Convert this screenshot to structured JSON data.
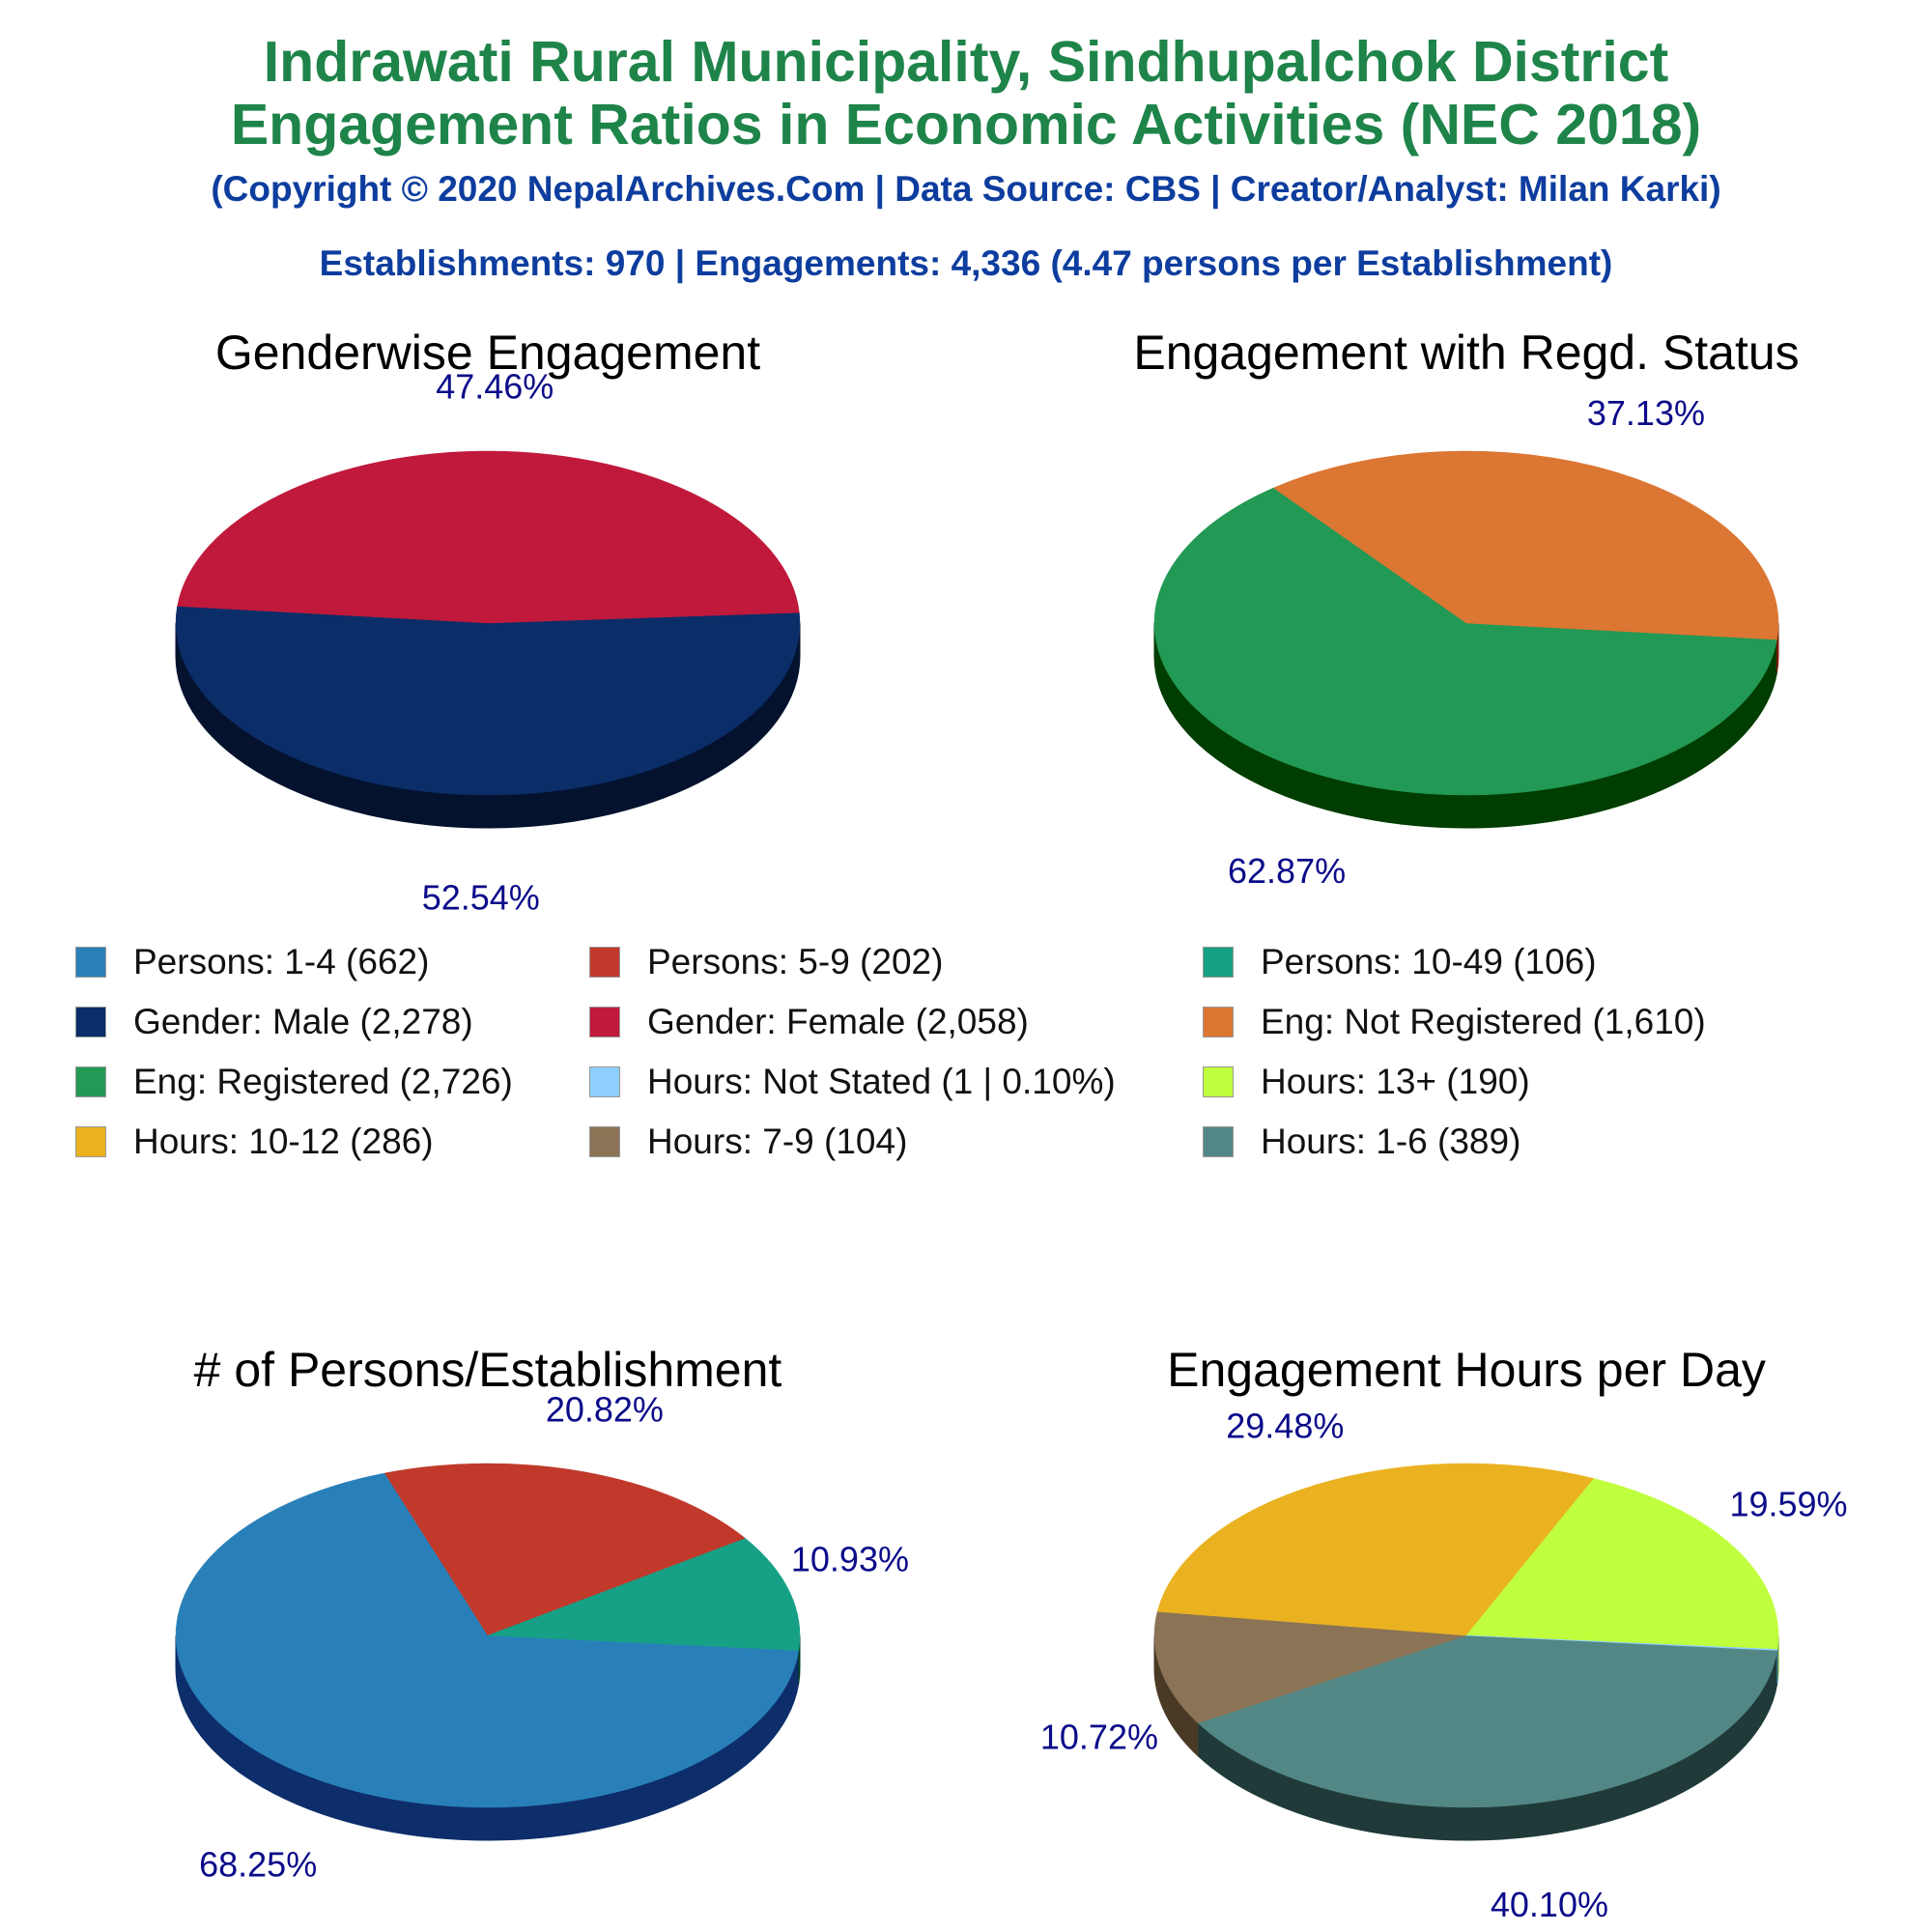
{
  "header": {
    "title_line1": "Indrawati Rural Municipality, Sindhupalchok District",
    "title_line2": "Engagement Ratios in Economic Activities (NEC 2018)",
    "copyright": "(Copyright © 2020 NepalArchives.Com | Data Source: CBS | Creator/Analyst: Milan Karki)",
    "summary": "Establishments: 970 | Engagements: 4,336 (4.47 persons per Establishment)"
  },
  "legend": [
    {
      "label": "Persons: 1-4 (662)",
      "color": "#2980b9"
    },
    {
      "label": "Persons: 5-9 (202)",
      "color": "#c0392b"
    },
    {
      "label": "Persons: 10-49 (106)",
      "color": "#16a085"
    },
    {
      "label": "Gender: Male (2,278)",
      "color": "#0b2d68"
    },
    {
      "label": "Gender: Female (2,058)",
      "color": "#c0193c"
    },
    {
      "label": "Eng: Not Registered (1,610)",
      "color": "#dc7633"
    },
    {
      "label": "Eng: Registered (2,726)",
      "color": "#229954"
    },
    {
      "label": "Hours: Not Stated (1 | 0.10%)",
      "color": "#8ecfff"
    },
    {
      "label": "Hours: 13+ (190)",
      "color": "#c0ff3e"
    },
    {
      "label": "Hours: 10-12 (286)",
      "color": "#eab220"
    },
    {
      "label": "Hours: 7-9 (104)",
      "color": "#8b7355"
    },
    {
      "label": "Hours: 1-6 (389)",
      "color": "#528785"
    }
  ],
  "chart_data": [
    {
      "type": "pie",
      "title": "Genderwise Engagement",
      "start_angle_deg": 3.5,
      "slices": [
        {
          "name": "Gender: Male",
          "value": 52.54,
          "label": "52.54%",
          "color": "#0b2d68",
          "side_color": "#04122e"
        },
        {
          "name": "Gender: Female",
          "value": 47.46,
          "label": "47.46%",
          "color": "#c0193c",
          "side_color": "#6a0000"
        }
      ]
    },
    {
      "type": "pie",
      "title": "Engagement with Regd. Status",
      "start_angle_deg": -5.5,
      "slices": [
        {
          "name": "Eng: Registered",
          "value": 62.87,
          "label": "62.87%",
          "color": "#229954",
          "side_color": "#003d00"
        },
        {
          "name": "Eng: Not Registered",
          "value": 37.13,
          "label": "37.13%",
          "color": "#dc7633",
          "side_color": "#7a1a00"
        }
      ]
    },
    {
      "type": "pie",
      "title": "# of Persons/Establishment",
      "start_angle_deg": -5,
      "slices": [
        {
          "name": "Persons: 1-4",
          "value": 68.25,
          "label": "68.25%",
          "color": "#2980b9",
          "side_color": "#0d2e6a"
        },
        {
          "name": "Persons: 5-9",
          "value": 20.82,
          "label": "20.82%",
          "color": "#c0392b",
          "side_color": "#6a0000"
        },
        {
          "name": "Persons: 10-49",
          "value": 10.93,
          "label": "10.93%",
          "color": "#16a085",
          "side_color": "#003d25"
        }
      ]
    },
    {
      "type": "pie",
      "title": "Engagement Hours per Day",
      "start_angle_deg": -5,
      "slices": [
        {
          "name": "Hours: 1-6",
          "value": 40.1,
          "label": "40.10%",
          "color": "#528785",
          "side_color": "#1f3a39"
        },
        {
          "name": "Hours: 7-9",
          "value": 10.72,
          "label": "10.72%",
          "color": "#8b7355",
          "side_color": "#4a3a25"
        },
        {
          "name": "Hours: 10-12",
          "value": 29.48,
          "label": "29.48%",
          "color": "#eab220",
          "side_color": "#8f5600"
        },
        {
          "name": "Hours: 13+",
          "value": 19.59,
          "label": "19.59%",
          "color": "#c0ff3e",
          "side_color": "#6aa500"
        },
        {
          "name": "Hours: Not Stated",
          "value": 0.1,
          "label": "",
          "color": "#8ecfff",
          "side_color": "#3a7aaa"
        }
      ]
    }
  ]
}
